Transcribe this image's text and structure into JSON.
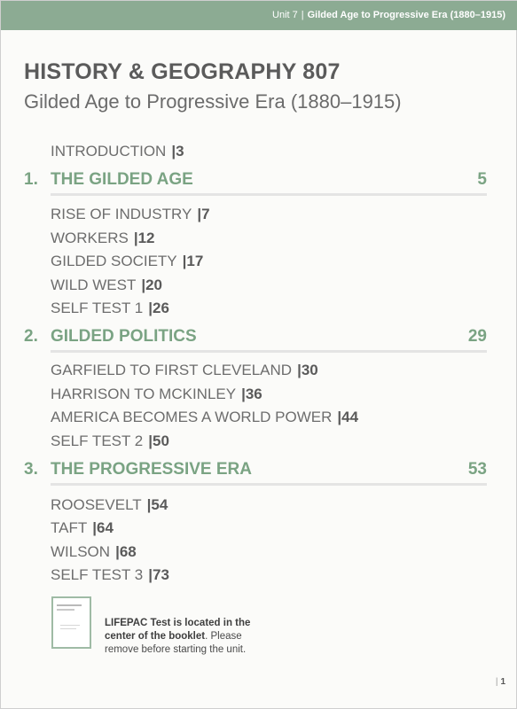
{
  "header": {
    "unit": "Unit 7",
    "separator": "|",
    "unit_title": "Gilded Age to Progressive Era (1880–1915)"
  },
  "title": "HISTORY & GEOGRAPHY 807",
  "subtitle": "Gilded Age to Progressive Era (1880–1915)",
  "intro": {
    "label": "INTRODUCTION",
    "page": "|3"
  },
  "sections": [
    {
      "number": "1.",
      "title": "THE GILDED AGE",
      "page": "5",
      "entries": [
        {
          "label": "RISE OF INDUSTRY",
          "page": "|7"
        },
        {
          "label": "WORKERS",
          "page": "|12"
        },
        {
          "label": "GILDED SOCIETY",
          "page": "|17"
        },
        {
          "label": "WILD WEST",
          "page": "|20"
        },
        {
          "label": "SELF TEST 1",
          "page": "|26"
        }
      ]
    },
    {
      "number": "2.",
      "title": "GILDED POLITICS",
      "page": "29",
      "entries": [
        {
          "label": "GARFIELD TO FIRST CLEVELAND",
          "page": "|30"
        },
        {
          "label": "HARRISON TO MCKINLEY",
          "page": "|36"
        },
        {
          "label": "AMERICA BECOMES A WORLD POWER",
          "page": "|44"
        },
        {
          "label": "SELF TEST 2",
          "page": "|50"
        }
      ]
    },
    {
      "number": "3.",
      "title": "THE PROGRESSIVE ERA",
      "page": "53",
      "entries": [
        {
          "label": "ROOSEVELT",
          "page": "|54"
        },
        {
          "label": "TAFT",
          "page": "|64"
        },
        {
          "label": "WILSON",
          "page": "|68"
        },
        {
          "label": "SELF TEST 3",
          "page": "|73"
        }
      ]
    }
  ],
  "note": {
    "bold": "LIFEPAC Test is located in the center of the booklet",
    "rest": ". Please remove before starting the unit."
  },
  "footer": {
    "bar": "|",
    "page_number": "1"
  },
  "colors": {
    "accent_green": "#7aa383",
    "header_band": "#8cab93",
    "text_gray": "#6d6d6d"
  },
  "icons": {
    "booklet": "booklet-icon"
  }
}
